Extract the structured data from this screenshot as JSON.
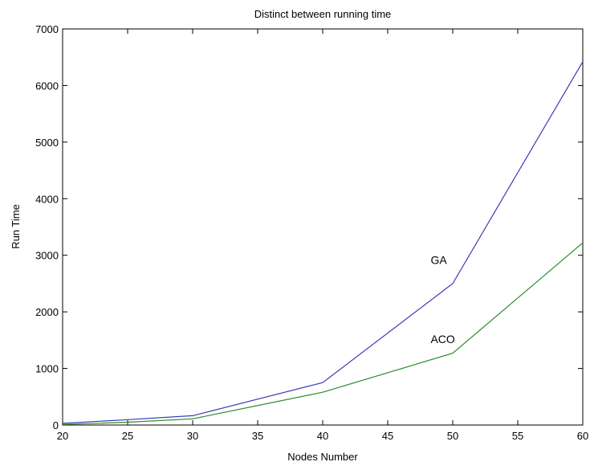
{
  "chart_data": {
    "type": "line",
    "title": "Distinct between running time",
    "xlabel": "Nodes Number",
    "ylabel": "Run Time",
    "xlim": [
      20,
      60
    ],
    "ylim": [
      0,
      7000
    ],
    "xticks": [
      20,
      25,
      30,
      35,
      40,
      45,
      50,
      55,
      60
    ],
    "yticks": [
      0,
      1000,
      2000,
      3000,
      4000,
      5000,
      6000,
      7000
    ],
    "grid": false,
    "x": [
      20,
      25,
      30,
      40,
      50,
      60
    ],
    "series": [
      {
        "name": "GA",
        "values": [
          30,
          95,
          165,
          750,
          2500,
          6420
        ],
        "color": "#3a3ab8"
      },
      {
        "name": "ACO",
        "values": [
          10,
          50,
          110,
          580,
          1270,
          3220
        ],
        "color": "#2b8a2b"
      }
    ],
    "annotations": [
      {
        "text": "GA",
        "x": 48.3,
        "y": 2850
      },
      {
        "text": "ACO",
        "x": 48.3,
        "y": 1450
      }
    ]
  }
}
